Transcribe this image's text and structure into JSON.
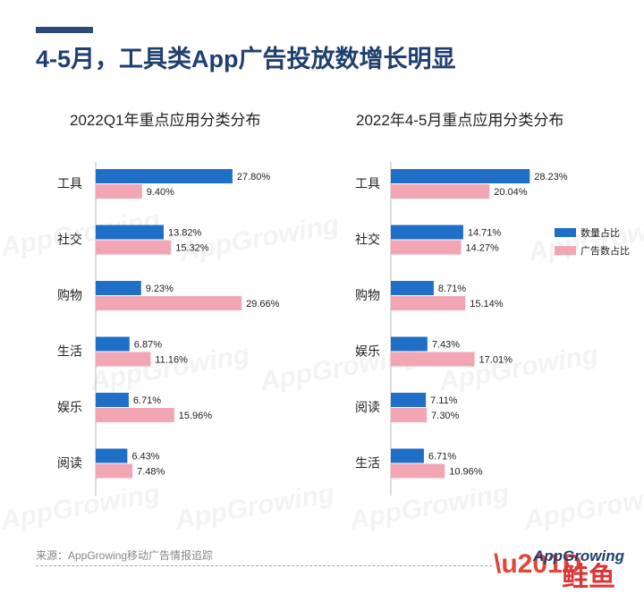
{
  "header": {
    "title": "4-5月，工具类App广告投放数增长明显"
  },
  "colors": {
    "quantity": "#1f6fc7",
    "ad": "#f2a6b4",
    "accent": "#2b4a78"
  },
  "legend": {
    "quantity_label": "数量占比",
    "ad_label": "广告数占比"
  },
  "chart_data": [
    {
      "type": "bar",
      "orientation": "horizontal",
      "title": "2022Q1年重点应用分类分布",
      "categories": [
        "工具",
        "社交",
        "购物",
        "生活",
        "娱乐",
        "阅读"
      ],
      "series": [
        {
          "name": "数量占比",
          "values": [
            27.8,
            13.82,
            9.23,
            6.87,
            6.71,
            6.43
          ],
          "labels": [
            "27.80%",
            "13.82%",
            "9.23%",
            "6.87%",
            "6.71%",
            "6.43%"
          ]
        },
        {
          "name": "广告数占比",
          "values": [
            9.4,
            15.32,
            29.66,
            11.16,
            15.96,
            7.48
          ],
          "labels": [
            "9.40%",
            "15.32%",
            "29.66%",
            "11.16%",
            "15.96%",
            "7.48%"
          ]
        }
      ],
      "xlim": [
        0,
        32
      ]
    },
    {
      "type": "bar",
      "orientation": "horizontal",
      "title": "2022年4-5月重点应用分类分布",
      "categories": [
        "工具",
        "社交",
        "购物",
        "娱乐",
        "阅读",
        "生活"
      ],
      "series": [
        {
          "name": "数量占比",
          "values": [
            28.23,
            14.71,
            8.71,
            7.43,
            7.11,
            6.71
          ],
          "labels": [
            "28.23%",
            "14.71%",
            "8.71%",
            "7.43%",
            "7.11%",
            "6.71%"
          ]
        },
        {
          "name": "广告数占比",
          "values": [
            20.04,
            14.27,
            15.14,
            17.01,
            7.3,
            10.96
          ],
          "labels": [
            "20.04%",
            "14.27%",
            "15.14%",
            "17.01%",
            "7.30%",
            "10.96%"
          ]
        }
      ],
      "xlim": [
        0,
        32
      ]
    }
  ],
  "footer": {
    "source": "来源：AppGrowing移动广告情报追踪"
  },
  "logo": {
    "brand": "AppGrowing",
    "mark": "\\u201D",
    "sub": "鲑鱼"
  },
  "watermark": "AppGrowing"
}
